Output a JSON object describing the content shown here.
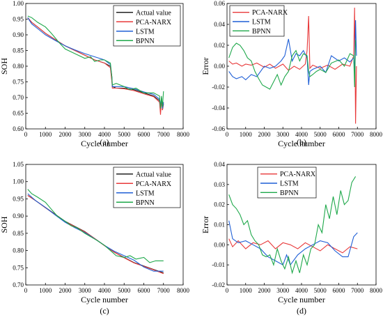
{
  "chart_data": [
    {
      "type": "line",
      "caption": "(a)",
      "xlabel": "Cycle number",
      "ylabel": "SOH",
      "xlim": [
        0,
        8000
      ],
      "ylim": [
        0.6,
        1.0
      ],
      "xticks": [
        "0",
        "1000",
        "2000",
        "3000",
        "4000",
        "5000",
        "6000",
        "7000",
        "8000"
      ],
      "yticks": [
        "0.60",
        "0.65",
        "0.70",
        "0.75",
        "0.80",
        "0.85",
        "0.90",
        "0.95",
        "1.00"
      ],
      "grid": false,
      "legend_position": "top-right",
      "series": [
        {
          "name": "Actual value",
          "color": "#222222",
          "x": [
            100,
            300,
            600,
            1000,
            1500,
            2000,
            2500,
            3000,
            3500,
            4000,
            4300,
            4380,
            4400,
            4600,
            5000,
            5500,
            6000,
            6500,
            6800,
            6850,
            6900,
            6950,
            7000
          ],
          "y": [
            0.955,
            0.94,
            0.925,
            0.905,
            0.885,
            0.865,
            0.85,
            0.835,
            0.82,
            0.81,
            0.8,
            0.755,
            0.735,
            0.73,
            0.73,
            0.725,
            0.715,
            0.705,
            0.69,
            0.655,
            0.7,
            0.66,
            0.68
          ]
        },
        {
          "name": "PCA-NARX",
          "color": "#e8393a",
          "x": [
            100,
            300,
            600,
            1000,
            1500,
            2000,
            2500,
            3000,
            3500,
            4000,
            4300,
            4380,
            4400,
            4600,
            5000,
            5500,
            6000,
            6500,
            6800,
            6850,
            6900,
            6950,
            7000
          ],
          "y": [
            0.955,
            0.94,
            0.925,
            0.905,
            0.885,
            0.865,
            0.85,
            0.835,
            0.82,
            0.81,
            0.795,
            0.75,
            0.73,
            0.73,
            0.728,
            0.722,
            0.712,
            0.703,
            0.685,
            0.645,
            0.7,
            0.66,
            0.685
          ]
        },
        {
          "name": "LSTM",
          "color": "#1f5fd6",
          "x": [
            100,
            200,
            300,
            600,
            1000,
            1500,
            2000,
            2500,
            3000,
            3500,
            4000,
            4300,
            4380,
            4400,
            4600,
            5000,
            5500,
            6000,
            6500,
            6800,
            6850,
            6900,
            6950,
            7000
          ],
          "y": [
            0.955,
            0.945,
            0.935,
            0.92,
            0.9,
            0.882,
            0.865,
            0.852,
            0.84,
            0.83,
            0.82,
            0.805,
            0.765,
            0.735,
            0.735,
            0.735,
            0.728,
            0.718,
            0.71,
            0.695,
            0.67,
            0.7,
            0.665,
            0.685
          ]
        },
        {
          "name": "BPNN",
          "color": "#1ea84a",
          "x": [
            100,
            300,
            600,
            1000,
            1300,
            1500,
            1700,
            2000,
            2500,
            3000,
            3300,
            3500,
            3800,
            4000,
            4300,
            4380,
            4400,
            4600,
            5000,
            5300,
            5600,
            6000,
            6500,
            6800,
            6850,
            6900,
            6950,
            7000
          ],
          "y": [
            0.96,
            0.955,
            0.94,
            0.925,
            0.905,
            0.89,
            0.875,
            0.855,
            0.84,
            0.825,
            0.83,
            0.815,
            0.82,
            0.82,
            0.81,
            0.765,
            0.74,
            0.745,
            0.735,
            0.725,
            0.73,
            0.715,
            0.715,
            0.705,
            0.665,
            0.705,
            0.67,
            0.72
          ]
        }
      ]
    },
    {
      "type": "line",
      "caption": "(b)",
      "xlabel": "Cycle number",
      "ylabel": "Error",
      "xlim": [
        0,
        8000
      ],
      "ylim": [
        -0.06,
        0.06
      ],
      "xticks": [
        "0",
        "1000",
        "2000",
        "3000",
        "4000",
        "5000",
        "6000",
        "7000",
        "8000"
      ],
      "yticks": [
        "-0.06",
        "-0.04",
        "-0.02",
        "0.00",
        "0.02",
        "0.04",
        "0.06"
      ],
      "grid": false,
      "legend_position": "top-left",
      "series": [
        {
          "name": "PCA-NARX",
          "color": "#e8393a",
          "x": [
            100,
            300,
            500,
            800,
            1000,
            1300,
            1600,
            2000,
            2300,
            2600,
            3000,
            3300,
            3600,
            3900,
            4200,
            4300,
            4380,
            4450,
            4600,
            5000,
            5400,
            5800,
            6200,
            6600,
            6800,
            6850,
            6900,
            6950
          ],
          "y": [
            0.005,
            0.002,
            0.003,
            0.0,
            0.002,
            0.001,
            0.003,
            -0.001,
            0.002,
            -0.002,
            0.002,
            -0.004,
            0.0,
            -0.003,
            0.002,
            0.015,
            0.048,
            -0.002,
            0.001,
            -0.002,
            0.001,
            -0.003,
            0.002,
            0.0,
            0.01,
            0.056,
            -0.055,
            0.0
          ]
        },
        {
          "name": "LSTM",
          "color": "#1f5fd6",
          "x": [
            100,
            300,
            500,
            800,
            1000,
            1300,
            1600,
            2000,
            2300,
            2600,
            2900,
            3100,
            3300,
            3500,
            3700,
            3900,
            4100,
            4300,
            4380,
            4450,
            4600,
            5000,
            5300,
            5600,
            6000,
            6300,
            6600,
            6800,
            6850,
            6900,
            6950
          ],
          "y": [
            -0.005,
            -0.01,
            -0.012,
            -0.01,
            -0.013,
            -0.008,
            -0.01,
            0.0,
            -0.002,
            0.0,
            0.005,
            0.01,
            0.026,
            0.005,
            0.012,
            0.01,
            0.015,
            0.008,
            -0.018,
            -0.005,
            -0.003,
            0.0,
            -0.006,
            0.01,
            0.005,
            0.008,
            0.004,
            0.008,
            -0.005,
            0.044,
            0.01
          ]
        },
        {
          "name": "BPNN",
          "color": "#1ea84a",
          "x": [
            100,
            300,
            500,
            700,
            900,
            1100,
            1300,
            1500,
            1700,
            1900,
            2100,
            2300,
            2500,
            2700,
            2900,
            3100,
            3300,
            3500,
            3700,
            3900,
            4100,
            4300,
            4380,
            4450,
            4600,
            4800,
            5000,
            5300,
            5600,
            6000,
            6300,
            6600,
            6800,
            6850,
            6900
          ],
          "y": [
            0.008,
            0.018,
            0.022,
            0.02,
            0.015,
            0.008,
            0.005,
            -0.005,
            -0.012,
            -0.018,
            -0.02,
            -0.022,
            -0.015,
            -0.008,
            -0.018,
            -0.01,
            -0.005,
            0.01,
            0.015,
            0.005,
            0.012,
            0.01,
            -0.005,
            -0.01,
            -0.008,
            -0.005,
            -0.003,
            -0.006,
            0.003,
            0.006,
            0.0,
            0.012,
            0.01,
            -0.02,
            0.025
          ]
        }
      ]
    },
    {
      "type": "line",
      "caption": "(c)",
      "xlabel": "Cycle number",
      "ylabel": "SOH",
      "xlim": [
        0,
        8000
      ],
      "ylim": [
        0.7,
        1.05
      ],
      "xticks": [
        "0",
        "1000",
        "2000",
        "3000",
        "4000",
        "5000",
        "6000",
        "7000",
        "8000"
      ],
      "yticks": [
        "0.70",
        "0.75",
        "0.80",
        "0.85",
        "0.90",
        "0.95",
        "1.00",
        "1.05"
      ],
      "grid": false,
      "legend_position": "top-right",
      "series": [
        {
          "name": "Actual value",
          "color": "#222222",
          "x": [
            100,
            500,
            1000,
            1500,
            2000,
            2500,
            3000,
            3500,
            4000,
            4500,
            5000,
            5500,
            6000,
            6500,
            7000
          ],
          "y": [
            0.96,
            0.945,
            0.925,
            0.905,
            0.885,
            0.87,
            0.855,
            0.835,
            0.815,
            0.795,
            0.78,
            0.765,
            0.755,
            0.745,
            0.735
          ]
        },
        {
          "name": "PCA-NARX",
          "color": "#e8393a",
          "x": [
            100,
            500,
            1000,
            1500,
            2000,
            2500,
            3000,
            3500,
            4000,
            4500,
            5000,
            5500,
            6000,
            6500,
            7000
          ],
          "y": [
            0.96,
            0.945,
            0.924,
            0.904,
            0.884,
            0.869,
            0.854,
            0.835,
            0.814,
            0.795,
            0.779,
            0.764,
            0.754,
            0.744,
            0.733
          ]
        },
        {
          "name": "LSTM",
          "color": "#1f5fd6",
          "x": [
            100,
            500,
            1000,
            1500,
            2000,
            2500,
            3000,
            3500,
            4000,
            4500,
            5000,
            5500,
            6000,
            6500,
            7000
          ],
          "y": [
            0.965,
            0.945,
            0.925,
            0.903,
            0.882,
            0.866,
            0.852,
            0.834,
            0.815,
            0.798,
            0.785,
            0.772,
            0.752,
            0.74,
            0.74
          ]
        },
        {
          "name": "BPNN",
          "color": "#1ea84a",
          "x": [
            100,
            300,
            600,
            1000,
            1300,
            1600,
            2000,
            2300,
            2600,
            3000,
            3300,
            3600,
            4000,
            4300,
            4600,
            5000,
            5300,
            5600,
            6000,
            6300,
            6600,
            7000
          ],
          "y": [
            0.978,
            0.965,
            0.955,
            0.94,
            0.92,
            0.9,
            0.885,
            0.872,
            0.866,
            0.85,
            0.84,
            0.83,
            0.815,
            0.8,
            0.785,
            0.78,
            0.785,
            0.775,
            0.78,
            0.765,
            0.77,
            0.77
          ]
        }
      ]
    },
    {
      "type": "line",
      "caption": "(d)",
      "xlabel": "Cycle number",
      "ylabel": "Error",
      "xlim": [
        0,
        8000
      ],
      "ylim": [
        -0.02,
        0.04
      ],
      "xticks": [
        "0",
        "1000",
        "2000",
        "3000",
        "4000",
        "5000",
        "6000",
        "7000",
        "8000"
      ],
      "yticks": [
        "-0.02",
        "-0.01",
        "0.00",
        "0.01",
        "0.02",
        "0.03",
        "0.04"
      ],
      "grid": false,
      "legend_position": "top-center",
      "series": [
        {
          "name": "PCA-NARX",
          "color": "#e8393a",
          "x": [
            100,
            300,
            600,
            1000,
            1400,
            1800,
            2200,
            2600,
            3000,
            3400,
            3800,
            4200,
            4600,
            5000,
            5400,
            5800,
            6200,
            6600,
            7000
          ],
          "y": [
            0.003,
            -0.001,
            0.002,
            -0.002,
            0.001,
            0.0,
            0.002,
            -0.002,
            0.001,
            0.0,
            -0.002,
            0.001,
            -0.001,
            -0.003,
            0.0,
            -0.002,
            -0.004,
            -0.001,
            -0.002
          ]
        },
        {
          "name": "LSTM",
          "color": "#1f5fd6",
          "x": [
            100,
            300,
            600,
            1000,
            1400,
            1800,
            2200,
            2600,
            3000,
            3200,
            3400,
            3800,
            4200,
            4600,
            5000,
            5400,
            5800,
            6200,
            6500,
            6800,
            7000
          ],
          "y": [
            0.012,
            0.003,
            0.001,
            0.002,
            0.0,
            -0.002,
            -0.006,
            -0.008,
            -0.01,
            -0.005,
            -0.01,
            -0.005,
            -0.002,
            0.0,
            0.002,
            0.001,
            -0.003,
            -0.006,
            -0.006,
            0.004,
            0.006
          ]
        },
        {
          "name": "BPNN",
          "color": "#1ea84a",
          "x": [
            100,
            300,
            500,
            700,
            900,
            1100,
            1300,
            1500,
            1700,
            1900,
            2100,
            2300,
            2500,
            2700,
            2900,
            3100,
            3300,
            3500,
            3700,
            3900,
            4100,
            4300,
            4500,
            4700,
            4900,
            5100,
            5300,
            5500,
            5700,
            5900,
            6100,
            6300,
            6500,
            6700,
            6900
          ],
          "y": [
            0.025,
            0.02,
            0.018,
            0.015,
            0.01,
            0.012,
            0.005,
            0.002,
            0.0,
            -0.005,
            -0.006,
            -0.005,
            -0.01,
            -0.002,
            -0.008,
            -0.012,
            -0.006,
            -0.014,
            -0.008,
            -0.014,
            -0.005,
            -0.01,
            -0.002,
            0.0,
            0.01,
            0.006,
            0.02,
            0.013,
            0.024,
            0.015,
            0.027,
            0.02,
            0.022,
            0.031,
            0.034
          ]
        }
      ]
    }
  ]
}
